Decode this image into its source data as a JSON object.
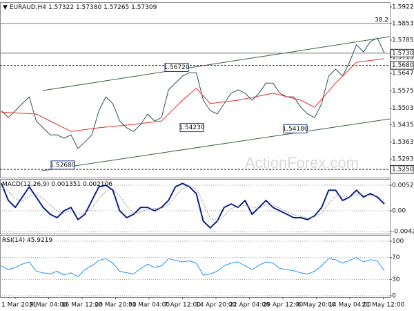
{
  "chart_data": [
    {
      "type": "line",
      "title": "EURAUD,H4",
      "readout": [
        1.57322,
        {
          "value": 1.5738,
          "label": "1.57380"
        },
        1.57265,
        1.57309
      ],
      "ylim": [
        1.5216,
        1.5942
      ],
      "yticks": [
        {
          "value": 1.5922,
          "label": "1.59220"
        },
        1.58535,
        {
          "value": 1.5785,
          "label": "1.57850"
        },
        {
          "value": 1.5713,
          "label": "1.57130"
        },
        {
          "value": 1.5647,
          "label": "1.56470"
        },
        {
          "value": 1.5575,
          "label": "1.55750"
        },
        {
          "value": 1.5503,
          "label": "1.55030"
        },
        {
          "value": 1.5435,
          "label": "1.54350"
        },
        {
          "value": 1.5363,
          "label": "1.53630"
        },
        {
          "value": 1.5293,
          "label": "1.52930"
        }
      ],
      "series": [
        {
          "color": "#2f4f4f",
          "values": [
            1.5493,
            1.5464,
            1.5493,
            1.5522,
            1.555,
            1.545,
            1.5422,
            1.5393,
            1.5393,
            1.5379,
            1.5393,
            1.5336,
            1.5364,
            1.5393,
            1.5493,
            1.555,
            1.5522,
            1.545,
            1.5422,
            1.5407,
            1.5436,
            1.5479,
            1.545,
            1.5464,
            1.5579,
            1.5607,
            1.5636,
            1.565,
            1.565,
            1.5536,
            1.5493,
            1.5479,
            1.5522,
            1.5565,
            1.5579,
            1.5565,
            1.5536,
            1.5565,
            1.5607,
            1.5607,
            1.5565,
            1.555,
            1.555,
            1.5507,
            1.5479,
            1.5464,
            1.5522,
            1.5636,
            1.5665,
            1.5636,
            1.5693,
            1.5765,
            1.5736,
            1.5779,
            1.5793,
            1.5731
          ]
        },
        {
          "color": "#e0302b",
          "x": [
            0,
            5,
            10,
            14,
            19,
            23,
            26,
            28,
            30,
            34,
            39,
            43,
            45,
            48,
            51,
            55
          ],
          "values": [
            1.5487,
            1.5479,
            1.5407,
            1.5422,
            1.5436,
            1.545,
            1.5536,
            1.5585,
            1.5522,
            1.5536,
            1.5565,
            1.5536,
            1.5507,
            1.5607,
            1.5693,
            1.5708
          ]
        }
      ],
      "channel": {
        "color": "#3b5e3b",
        "upper": [
          1.5576,
          1.5799
        ],
        "lower": [
          1.5244,
          1.5459
        ]
      },
      "levels": [
        {
          "value": 1.5853,
          "label": "38.2",
          "style": "solid"
        },
        {
          "value": 1.57309,
          "style": "solid",
          "boxed": true
        },
        {
          "value": 1.568,
          "label": "1.56800",
          "style": "dashed",
          "boxed": true
        },
        {
          "value": 1.525,
          "label": "1.52500",
          "style": "dashed",
          "boxed": true
        }
      ],
      "annotations": [
        {
          "value": 1.5672,
          "label": "1.56720"
        },
        {
          "value": 1.5423,
          "label": "1.54230"
        },
        {
          "value": 1.5418,
          "label": "1.54180"
        },
        {
          "value": 1.5268,
          "label": "1.52680"
        }
      ],
      "watermark": "ActionForex.com"
    },
    {
      "type": "line",
      "title": "MACD(12,26,9)",
      "readout": [
        0.001351,
        0.002106
      ],
      "ylim": [
        -0.00465,
        0.00649
      ],
      "yticks": [
        0.005217,
        {
          "value": 0,
          "label": "0.00"
        },
        -0.004256
      ],
      "grid": "dotted",
      "series": [
        {
          "color": "#0b1f8a",
          "values": [
            0.0056,
            0.0021,
            0.0007,
            0.0028,
            0.0049,
            0.0028,
            0.0007,
            -0.0007,
            -0.0014,
            0,
            0.0007,
            -0.0018,
            -0.0007,
            0.0021,
            0.0049,
            0.0052,
            0.0042,
            0,
            -0.0014,
            -0.0007,
            0.0007,
            0.0007,
            0,
            0.0007,
            0.0021,
            0.0049,
            0.0056,
            0.0049,
            0.0035,
            -0.0021,
            -0.0035,
            -0.0021,
            0.0007,
            0.0014,
            0.0007,
            0.0021,
            -0.0007,
            0.0007,
            0.0021,
            0.0007,
            0,
            -0.0007,
            -0.0014,
            -0.0014,
            -0.0018,
            -0.001,
            0.0007,
            0.0042,
            0.0042,
            0.0021,
            0.0028,
            0.0042,
            0.0028,
            0.0035,
            0.0028,
            0.0014
          ]
        },
        {
          "color": "#999999",
          "linestyle": "dotted",
          "values": [
            0.005,
            0.004,
            0.0025,
            0.002,
            0.003,
            0.0035,
            0.0025,
            0.0012,
            0,
            -0.0005,
            0,
            -0.0005,
            -0.0005,
            0.0005,
            0.0025,
            0.004,
            0.0045,
            0.003,
            0.001,
            -0.0005,
            -0.0003,
            0.0003,
            0.0005,
            0.0005,
            0.0012,
            0.003,
            0.0045,
            0.005,
            0.0045,
            0.0015,
            -0.0015,
            -0.002,
            -0.001,
            0.0005,
            0.0008,
            0.0012,
            0.0008,
            0.0005,
            0.0012,
            0.0012,
            0.0005,
            -0.0002,
            -0.0008,
            -0.0012,
            -0.0015,
            -0.0012,
            -0.0005,
            0.0015,
            0.003,
            0.003,
            0.0028,
            0.0033,
            0.0032,
            0.0032,
            0.003,
            0.0021
          ]
        }
      ]
    },
    {
      "type": "line",
      "title": "RSI(14)",
      "readout": [
        45.9219
      ],
      "ylim": [
        -2.5,
        111.4
      ],
      "yticks": [
        100,
        70,
        30,
        0
      ],
      "grid": "dotted",
      "series": [
        {
          "color": "#1e90ff",
          "values": [
            55,
            48,
            52,
            58,
            62,
            45,
            42,
            40,
            45,
            38,
            42,
            35,
            48,
            55,
            65,
            68,
            60,
            45,
            42,
            40,
            50,
            58,
            52,
            55,
            68,
            65,
            62,
            64,
            60,
            38,
            40,
            45,
            55,
            60,
            62,
            55,
            48,
            56,
            62,
            60,
            50,
            48,
            46,
            42,
            40,
            45,
            55,
            68,
            66,
            60,
            65,
            70,
            62,
            66,
            64,
            46
          ]
        }
      ],
      "xticklabels": [
        "1 Mar 2021",
        "9 Mar 04:00",
        "16 Mar 12:00",
        "23 Mar 20:00",
        "31 Mar 04:00",
        "7 Apr 12:00",
        "14 Apr 20:00",
        "22 Apr 04:00",
        "29 Apr 12:00",
        "6 May 20:00",
        "14 May 04:00",
        "21 May 12:00"
      ]
    }
  ]
}
